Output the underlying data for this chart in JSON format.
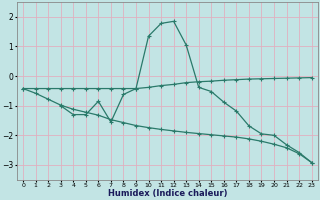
{
  "xlabel": "Humidex (Indice chaleur)",
  "bg_color": "#c2e4e4",
  "grid_color": "#e0b0c0",
  "line_color": "#2a7a6a",
  "xlim": [
    -0.5,
    23.5
  ],
  "ylim": [
    -3.5,
    2.5
  ],
  "yticks": [
    -3,
    -2,
    -1,
    0,
    1,
    2
  ],
  "xticks": [
    0,
    1,
    2,
    3,
    4,
    5,
    6,
    7,
    8,
    9,
    10,
    11,
    12,
    13,
    14,
    15,
    16,
    17,
    18,
    19,
    20,
    21,
    22,
    23
  ],
  "series1_x": [
    0,
    1,
    2,
    3,
    4,
    5,
    6,
    7,
    8,
    9,
    10,
    11,
    12,
    13,
    14,
    15,
    16,
    17,
    18,
    19,
    20,
    21,
    22,
    23
  ],
  "series1_y": [
    -0.42,
    -0.42,
    -0.42,
    -0.42,
    -0.42,
    -0.42,
    -0.42,
    -0.42,
    -0.42,
    -0.42,
    -0.38,
    -0.32,
    -0.28,
    -0.22,
    -0.19,
    -0.17,
    -0.14,
    -0.12,
    -0.1,
    -0.09,
    -0.08,
    -0.07,
    -0.06,
    -0.05
  ],
  "series2_x": [
    3,
    4,
    5,
    6,
    7,
    8,
    9,
    10,
    11,
    12,
    13,
    14,
    15,
    16,
    17,
    18,
    19,
    20,
    21,
    22,
    23
  ],
  "series2_y": [
    -1.0,
    -1.3,
    -1.3,
    -0.85,
    -1.55,
    -0.62,
    -0.42,
    1.35,
    1.78,
    1.85,
    1.05,
    -0.38,
    -0.52,
    -0.88,
    -1.18,
    -1.68,
    -1.95,
    -2.0,
    -2.32,
    -2.58,
    -2.92
  ],
  "series3_x": [
    0,
    1,
    2,
    3,
    4,
    5,
    6,
    7,
    8,
    9,
    10,
    11,
    12,
    13,
    14,
    15,
    16,
    17,
    18,
    19,
    20,
    21,
    22,
    23
  ],
  "series3_y": [
    -0.42,
    -0.58,
    -0.78,
    -0.98,
    -1.12,
    -1.22,
    -1.32,
    -1.47,
    -1.57,
    -1.67,
    -1.74,
    -1.8,
    -1.85,
    -1.9,
    -1.94,
    -1.98,
    -2.02,
    -2.06,
    -2.12,
    -2.2,
    -2.3,
    -2.42,
    -2.62,
    -2.92
  ]
}
